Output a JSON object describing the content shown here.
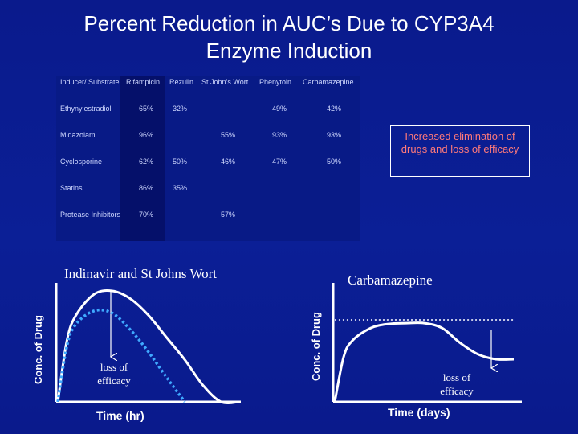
{
  "slide": {
    "title_line1": "Percent Reduction in AUC’s Due to CYP3A4",
    "title_line2": "Enzyme Induction",
    "note": "Increased elimination of drugs and loss of efficacy"
  },
  "table": {
    "headers": [
      "Inducer/ Substrate",
      "Rifampicin",
      "Rezulin",
      "St John’s Wort",
      "Phenytoin",
      "Carbamazepine"
    ],
    "rows": [
      [
        "Ethynylestradiol",
        "65%",
        "32%",
        "",
        "49%",
        "42%"
      ],
      [
        "Midazolam",
        "96%",
        "",
        "55%",
        "93%",
        "93%"
      ],
      [
        "Cyclosporine",
        "62%",
        "50%",
        "46%",
        "47%",
        "50%"
      ],
      [
        "Statins",
        "86%",
        "35%",
        "",
        "",
        ""
      ],
      [
        "Protease Inhibitors",
        "70%",
        "",
        "57%",
        "",
        ""
      ]
    ]
  },
  "charts": {
    "left": {
      "title": "Indinavir and St Johns Wort",
      "ylabel": "Conc. of Drug",
      "xlabel": "Time (hr)",
      "annotation": "loss of efficacy"
    },
    "right": {
      "title": "Carbamazepine",
      "ylabel": "Conc. of Drug",
      "xlabel": "Time (days)",
      "annotation": "loss of efficacy"
    }
  },
  "chart_data": [
    {
      "type": "line",
      "title": "Indinavir and St Johns Wort",
      "xlabel": "Time (hr)",
      "ylabel": "Conc. of Drug",
      "series": [
        {
          "style": "solid",
          "color": "#ffffff",
          "x": [
            0,
            0.5,
            1,
            2,
            3,
            4,
            5,
            6,
            7,
            8,
            9,
            10
          ],
          "y": [
            0,
            0.55,
            0.78,
            0.97,
            1.0,
            0.93,
            0.78,
            0.58,
            0.38,
            0.15,
            0,
            0
          ]
        },
        {
          "style": "dashed",
          "color": "#3fa9ff",
          "x": [
            0,
            0.5,
            1,
            2,
            3,
            4,
            5,
            6,
            7
          ],
          "y": [
            0,
            0.5,
            0.7,
            0.82,
            0.8,
            0.65,
            0.45,
            0.22,
            0
          ]
        }
      ]
    },
    {
      "type": "line",
      "title": "Carbamazepine",
      "xlabel": "Time (days)",
      "ylabel": "Conc. of Drug",
      "series": [
        {
          "style": "solid",
          "color": "#ffffff",
          "x": [
            0,
            0.5,
            1,
            2,
            3,
            4,
            5,
            6,
            7,
            8,
            9,
            10
          ],
          "y": [
            0,
            0.55,
            0.75,
            0.9,
            0.95,
            0.96,
            0.96,
            0.9,
            0.72,
            0.58,
            0.52,
            0.52
          ]
        },
        {
          "style": "dotted",
          "color": "#ffffff",
          "x": [
            0,
            10
          ],
          "y": [
            1.0,
            1.0
          ]
        }
      ]
    }
  ]
}
